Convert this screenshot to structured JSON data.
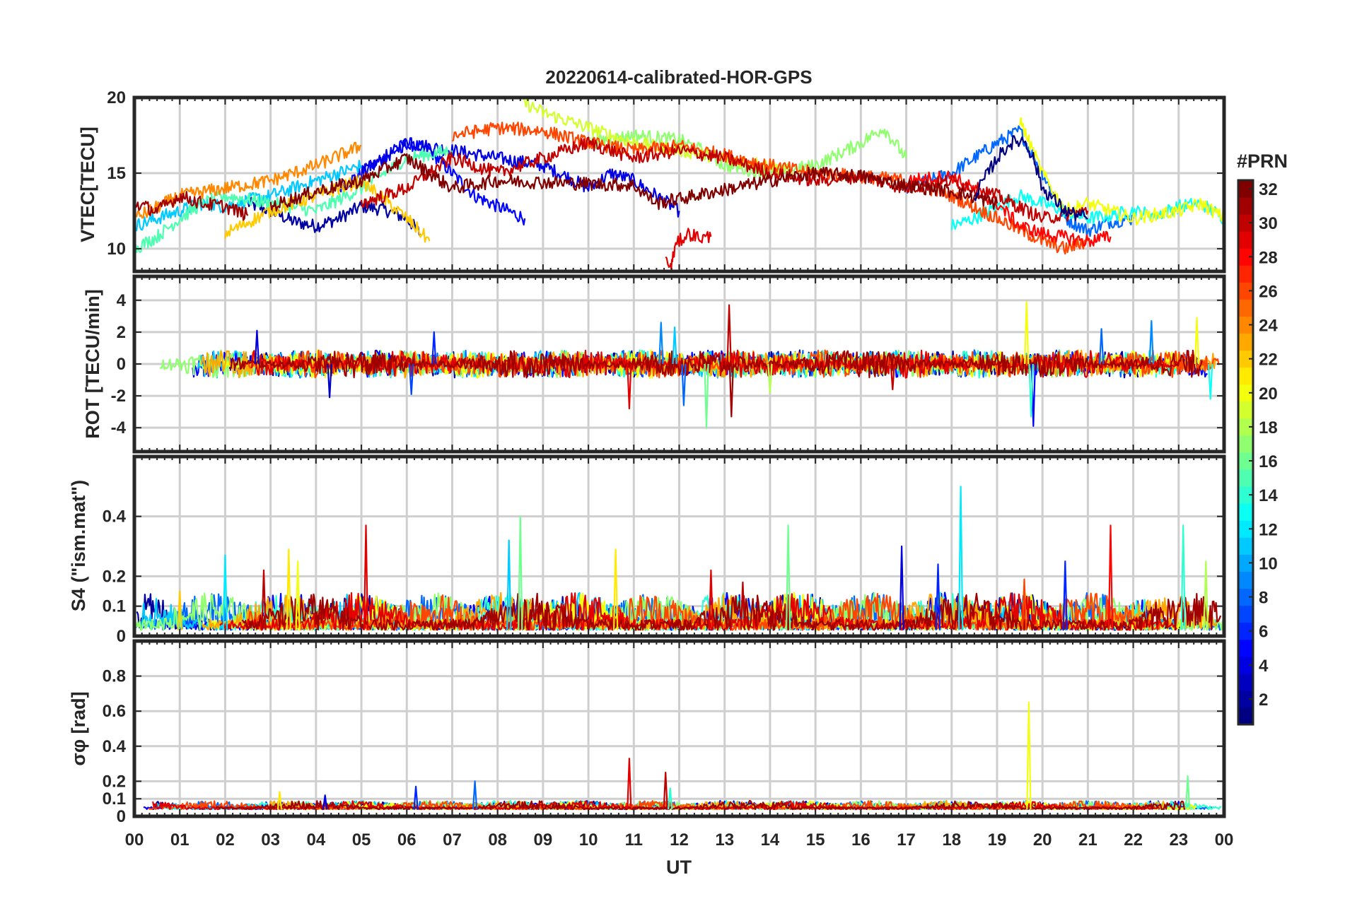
{
  "chart_data": {
    "type": "line",
    "title": "20220614-calibrated-HOR-GPS",
    "xlabel": "UT",
    "x_range_hours": [
      0,
      24
    ],
    "x_ticks": [
      "00",
      "01",
      "02",
      "03",
      "04",
      "05",
      "06",
      "07",
      "08",
      "09",
      "10",
      "11",
      "12",
      "13",
      "14",
      "15",
      "16",
      "17",
      "18",
      "19",
      "20",
      "21",
      "22",
      "23",
      "00"
    ],
    "grid": true,
    "colorbar": {
      "title": "#PRN",
      "colormap": "jet",
      "range": [
        1,
        32
      ],
      "ticks": [
        "32",
        "30",
        "28",
        "26",
        "24",
        "22",
        "20",
        "18",
        "16",
        "14",
        "12",
        "10",
        "8",
        "6",
        "4",
        "2"
      ],
      "tick_values": [
        32,
        30,
        28,
        26,
        24,
        22,
        20,
        18,
        16,
        14,
        12,
        10,
        8,
        6,
        4,
        2
      ]
    },
    "panels": [
      {
        "id": "vtec",
        "ylabel": "VTEC[TECU]",
        "ylim": [
          8.5,
          20
        ],
        "yticks": [
          10,
          15,
          20
        ],
        "ytick_labels": [
          "10",
          "15",
          "20"
        ],
        "tracks": [
          {
            "prn": 2,
            "x": [
              2.5,
              3,
              3.5,
              4,
              4.5,
              5,
              5.5,
              6,
              6.3
            ],
            "y": [
              13,
              12.5,
              11.8,
              11.5,
              12,
              12.8,
              12.6,
              12,
              11.0
            ]
          },
          {
            "prn": 5,
            "x": [
              4.5,
              5,
              5.5,
              6,
              6.5,
              7,
              7.5,
              8,
              8.6
            ],
            "y": [
              14,
              15,
              16,
              17,
              16.5,
              15,
              13.5,
              12.8,
              12.0
            ]
          },
          {
            "prn": 4,
            "x": [
              5,
              6,
              7,
              8,
              9,
              9.5,
              10,
              10.5,
              11,
              11.5,
              12
            ],
            "y": [
              15,
              17,
              16.5,
              16,
              15.5,
              14.8,
              14,
              15,
              14.5,
              13.5,
              12.5
            ]
          },
          {
            "prn": 8,
            "x": [
              17,
              17.5,
              18,
              18.5,
              19,
              19.5,
              20,
              20.5,
              21,
              21.5,
              22
            ],
            "y": [
              14,
              14.5,
              15,
              16,
              17,
              17.8,
              15,
              12,
              11.2,
              11.8,
              12
            ]
          },
          {
            "prn": 11,
            "x": [
              0,
              0.5,
              1,
              1.5,
              2,
              2.5,
              3,
              3.5,
              4,
              5
            ],
            "y": [
              11.5,
              12,
              12.5,
              13,
              12.8,
              13.2,
              13.5,
              14,
              14.5,
              15.5
            ]
          },
          {
            "prn": 13,
            "x": [
              18,
              18.5,
              19,
              19.5,
              20,
              20.5,
              21,
              21.5,
              22,
              22.5,
              23,
              23.5,
              24
            ],
            "y": [
              11.5,
              12,
              12.8,
              13.5,
              13,
              12.5,
              12,
              12.2,
              12.5,
              12.2,
              12.8,
              13,
              12.0
            ]
          },
          {
            "prn": 15,
            "x": [
              0,
              0.5,
              1,
              1.5,
              2,
              3,
              4,
              5,
              6,
              7
            ],
            "y": [
              10,
              10.8,
              12,
              13,
              13.5,
              13,
              12.5,
              14,
              16,
              16.5
            ]
          },
          {
            "prn": 17,
            "x": [
              10,
              11,
              12,
              12.5,
              13,
              14,
              15,
              16,
              16.5,
              17
            ],
            "y": [
              17,
              17.5,
              17.2,
              16.5,
              15.5,
              15,
              15.5,
              17,
              18,
              16
            ]
          },
          {
            "prn": 19,
            "x": [
              8.5,
              9,
              10,
              11,
              12,
              13,
              14,
              14.5
            ],
            "y": [
              19.8,
              19,
              18,
              17,
              16.5,
              16,
              15.5,
              15
            ]
          },
          {
            "prn": 20,
            "x": [
              19.5,
              20,
              20.5,
              21,
              21.5,
              22,
              23,
              23.5,
              24
            ],
            "y": [
              18.5,
              15,
              12.5,
              13,
              12.5,
              12,
              12.5,
              13,
              12
            ]
          },
          {
            "prn": 22,
            "x": [
              2,
              3,
              4,
              5,
              6,
              6.5
            ],
            "y": [
              11,
              12.5,
              13.5,
              14.5,
              12,
              10.5
            ]
          },
          {
            "prn": 24,
            "x": [
              0,
              1,
              2,
              3,
              4,
              5
            ],
            "y": [
              12,
              13.5,
              14,
              14.5,
              15.5,
              16.8
            ]
          },
          {
            "prn": 26,
            "x": [
              7,
              8,
              9,
              10,
              11,
              12,
              13,
              14,
              15,
              16,
              17,
              18,
              19,
              20,
              20.5,
              21
            ],
            "y": [
              17.5,
              18,
              17.8,
              17,
              16.5,
              16.8,
              16.2,
              15.5,
              15,
              14.8,
              14.5,
              13.5,
              12,
              10.5,
              10,
              10.5
            ]
          },
          {
            "prn": 28,
            "x": [
              17,
              18,
              19,
              19.5,
              20,
              21,
              21.5
            ],
            "y": [
              14.5,
              14.8,
              13,
              11.5,
              11,
              10.5,
              10.8
            ]
          },
          {
            "prn": 30,
            "x": [
              5,
              6,
              7,
              8,
              9,
              10,
              11,
              12,
              13,
              14,
              15,
              16,
              17,
              18,
              19,
              20,
              21
            ],
            "y": [
              13,
              14,
              16,
              15,
              16,
              17,
              16,
              16.5,
              16,
              15,
              14.5,
              14.8,
              14,
              14.5,
              13.5,
              12,
              12.5
            ]
          },
          {
            "prn": 31,
            "x": [
              0,
              0.5,
              1,
              1.5,
              2,
              2.5
            ],
            "y": [
              13,
              12.5,
              13.5,
              13,
              12.8,
              12.2
            ]
          },
          {
            "prn": 32,
            "x": [
              3,
              4,
              5,
              6,
              7,
              8,
              11,
              11.5,
              14,
              15,
              16,
              17,
              18,
              19
            ],
            "y": [
              12.8,
              13.8,
              14.5,
              16,
              14,
              14.5,
              14.2,
              13,
              14.5,
              15,
              14.8,
              14.2,
              13.8,
              13
            ]
          },
          {
            "prn": 29,
            "x": [
              11.7,
              11.8,
              11.85,
              11.9,
              12,
              12.2,
              12.5,
              12.7
            ],
            "y": [
              9.5,
              8.7,
              9.2,
              10.0,
              10.5,
              11,
              10.7,
              10.8
            ]
          },
          {
            "prn": 1,
            "x": [
              18.5,
              19,
              19.3,
              19.6,
              19.8,
              20,
              20.5,
              21
            ],
            "y": [
              13.5,
              16,
              17,
              17.2,
              16,
              14,
              12.5,
              12
            ]
          }
        ]
      },
      {
        "id": "rot",
        "ylabel": "ROT [TECU/min]",
        "ylim": [
          -5.5,
          5.5
        ],
        "yticks": [
          -4,
          -2,
          0,
          2,
          4
        ],
        "ytick_labels": [
          "-4",
          "-2",
          "0",
          "2",
          "4"
        ],
        "spikes": [
          {
            "prn": 4,
            "x": 2.7,
            "y": 2.1
          },
          {
            "prn": 3,
            "x": 4.3,
            "y": -2.1
          },
          {
            "prn": 6,
            "x": 6.6,
            "y": 2.0
          },
          {
            "prn": 7,
            "x": 6.1,
            "y": -1.9
          },
          {
            "prn": 29,
            "x": 10.9,
            "y": -2.8
          },
          {
            "prn": 9,
            "x": 11.6,
            "y": 2.6
          },
          {
            "prn": 8,
            "x": 12.1,
            "y": -2.6
          },
          {
            "prn": 11,
            "x": 11.9,
            "y": 2.3
          },
          {
            "prn": 16,
            "x": 12.6,
            "y": -4.0
          },
          {
            "prn": 30,
            "x": 13.1,
            "y": 3.7
          },
          {
            "prn": 31,
            "x": 13.15,
            "y": -3.3
          },
          {
            "prn": 18,
            "x": 14.0,
            "y": -1.8
          },
          {
            "prn": 20,
            "x": 19.65,
            "y": 3.9
          },
          {
            "prn": 5,
            "x": 19.8,
            "y": -3.9
          },
          {
            "prn": 14,
            "x": 19.75,
            "y": -3.3
          },
          {
            "prn": 8,
            "x": 21.3,
            "y": 2.2
          },
          {
            "prn": 9,
            "x": 22.4,
            "y": 2.7
          },
          {
            "prn": 20,
            "x": 23.4,
            "y": 2.9
          },
          {
            "prn": 13,
            "x": 23.7,
            "y": -2.2
          },
          {
            "prn": 30,
            "x": 16.7,
            "y": -1.6
          }
        ]
      },
      {
        "id": "s4",
        "ylabel": "S4 (\"ism.mat\")",
        "ylim": [
          0,
          0.6
        ],
        "yticks": [
          0,
          0.1,
          0.2,
          0.4
        ],
        "ytick_labels": [
          "0",
          "0.1",
          "0.2",
          "0.4"
        ],
        "spikes": [
          {
            "prn": 12,
            "x": 2.0,
            "y": 0.27
          },
          {
            "prn": 30,
            "x": 2.85,
            "y": 0.22
          },
          {
            "prn": 20,
            "x": 3.6,
            "y": 0.25
          },
          {
            "prn": 21,
            "x": 3.4,
            "y": 0.29
          },
          {
            "prn": 29,
            "x": 5.1,
            "y": 0.37
          },
          {
            "prn": 16,
            "x": 8.5,
            "y": 0.4
          },
          {
            "prn": 11,
            "x": 8.25,
            "y": 0.32
          },
          {
            "prn": 21,
            "x": 10.6,
            "y": 0.29
          },
          {
            "prn": 29,
            "x": 12.7,
            "y": 0.22
          },
          {
            "prn": 16,
            "x": 14.4,
            "y": 0.37
          },
          {
            "prn": 4,
            "x": 16.9,
            "y": 0.3
          },
          {
            "prn": 6,
            "x": 17.7,
            "y": 0.24
          },
          {
            "prn": 12,
            "x": 18.2,
            "y": 0.5
          },
          {
            "prn": 6,
            "x": 20.5,
            "y": 0.25
          },
          {
            "prn": 28,
            "x": 21.5,
            "y": 0.37
          },
          {
            "prn": 14,
            "x": 23.1,
            "y": 0.37
          },
          {
            "prn": 18,
            "x": 23.6,
            "y": 0.25
          },
          {
            "prn": 26,
            "x": 19.6,
            "y": 0.19
          },
          {
            "prn": 30,
            "x": 13.4,
            "y": 0.18
          },
          {
            "prn": 22,
            "x": 1.0,
            "y": 0.15
          }
        ]
      },
      {
        "id": "sigma_phi",
        "ylabel": "σφ [rad]",
        "ylim": [
          0,
          1.0
        ],
        "yticks": [
          0,
          0.1,
          0.2,
          0.4,
          0.6,
          0.8
        ],
        "ytick_labels": [
          "0",
          "0.1",
          "0.2",
          "0.4",
          "0.6",
          "0.8"
        ],
        "spikes": [
          {
            "prn": 20,
            "x": 19.7,
            "y": 0.65
          },
          {
            "prn": 29,
            "x": 10.9,
            "y": 0.33
          },
          {
            "prn": 30,
            "x": 11.7,
            "y": 0.25
          },
          {
            "prn": 8,
            "x": 7.5,
            "y": 0.2
          },
          {
            "prn": 6,
            "x": 6.2,
            "y": 0.17
          },
          {
            "prn": 16,
            "x": 23.2,
            "y": 0.23
          },
          {
            "prn": 14,
            "x": 11.8,
            "y": 0.16
          },
          {
            "prn": 4,
            "x": 4.2,
            "y": 0.12
          },
          {
            "prn": 21,
            "x": 3.2,
            "y": 0.14
          }
        ]
      }
    ]
  }
}
